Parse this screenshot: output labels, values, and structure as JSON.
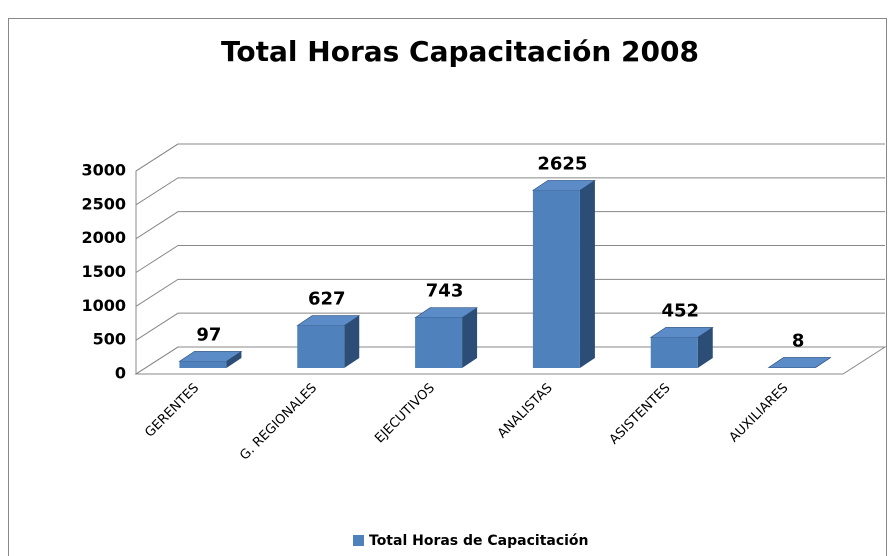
{
  "chart_data": {
    "type": "bar3d",
    "title": "Total Horas Capacitación 2008",
    "categories": [
      "GERENTES",
      "G. REGIONALES",
      "EJECUTIVOS",
      "ANALISTAS",
      "ASISTENTES",
      "AUXILIARES"
    ],
    "series": [
      {
        "name": "Total Horas de Capacitación",
        "color": "#4f81bd",
        "values": [
          97,
          627,
          743,
          2625,
          452,
          8
        ]
      }
    ],
    "ylim": [
      0,
      3000
    ],
    "yticks": [
      0,
      500,
      1000,
      1500,
      2000,
      2500,
      3000
    ],
    "grid": true,
    "legend": "bottom"
  }
}
